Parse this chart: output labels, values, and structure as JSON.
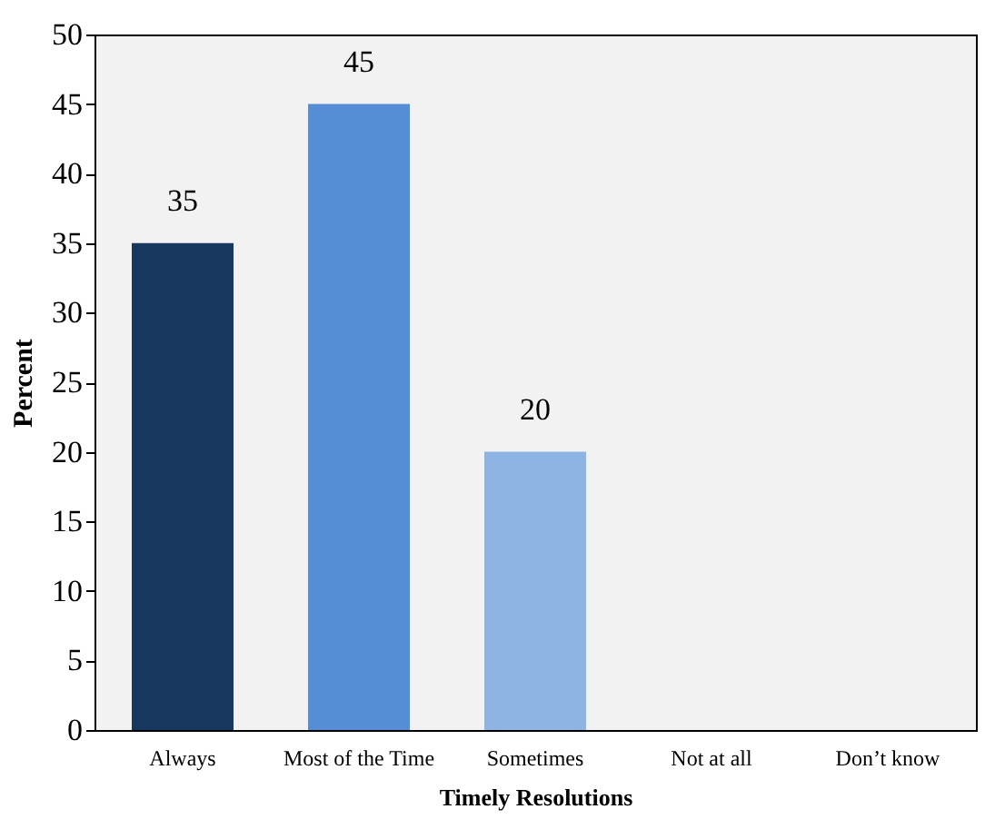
{
  "chart_data": {
    "type": "bar",
    "xlabel": "Timely Resolutions",
    "ylabel": "Percent",
    "categories": [
      "Always",
      "Most of the Time",
      "Sometimes",
      "Not at all",
      "Don’t know"
    ],
    "values": [
      35,
      45,
      20,
      0,
      0
    ],
    "colors": [
      "#17375e",
      "#558ed5",
      "#8eb4e3",
      "#8eb4e3",
      "#8eb4e3"
    ],
    "value_labels": [
      "35",
      "45",
      "20",
      null,
      null
    ],
    "ylim": [
      0,
      50
    ],
    "yticks": [
      0,
      5,
      10,
      15,
      20,
      25,
      30,
      35,
      40,
      45,
      50
    ]
  }
}
